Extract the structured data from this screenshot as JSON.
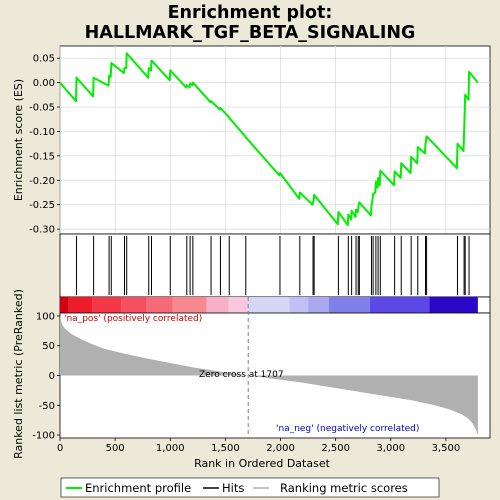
{
  "chart_data": {
    "type": "line",
    "title_lines": [
      "Enrichment plot:",
      "HALLMARK_TGF_BETA_SIGNALING"
    ],
    "top_panel": {
      "ylabel": "Enrichment score (ES)",
      "ylim": [
        -0.31,
        0.075
      ],
      "yticks": [
        0.05,
        0.0,
        -0.05,
        -0.1,
        -0.15,
        -0.2,
        -0.25,
        -0.3
      ],
      "ytick_labels": [
        "0.05",
        "0.00",
        "-0.05",
        "-0.10",
        "-0.15",
        "-0.20",
        "-0.25",
        "-0.30"
      ],
      "grid": true,
      "series": [
        {
          "name": "Enrichment profile",
          "color": "#00ee00",
          "x": [
            0,
            145,
            150,
            300,
            305,
            440,
            445,
            460,
            465,
            580,
            585,
            600,
            605,
            800,
            805,
            825,
            830,
            995,
            1000,
            1145,
            1150,
            1175,
            1180,
            1200,
            1205,
            1365,
            1370,
            1450,
            1455,
            1530,
            1535,
            1680,
            1685,
            1990,
            1995,
            2170,
            2175,
            2290,
            2295,
            2300,
            2305,
            2520,
            2525,
            2610,
            2615,
            2640,
            2645,
            2680,
            2685,
            2700,
            2705,
            2710,
            2715,
            2820,
            2825,
            2835,
            2840,
            2860,
            2865,
            2880,
            2885,
            2900,
            2905,
            3030,
            3035,
            3090,
            3095,
            3180,
            3185,
            3240,
            3245,
            3310,
            3315,
            3320,
            3325,
            3600,
            3605,
            3660,
            3665,
            3670,
            3675,
            3705,
            3710,
            3790
          ],
          "y": [
            0.0,
            -0.038,
            0.01,
            -0.028,
            0.01,
            -0.006,
            0.014,
            0.012,
            0.04,
            0.02,
            0.03,
            0.03,
            0.06,
            0.01,
            0.03,
            0.025,
            0.045,
            0.005,
            0.025,
            -0.01,
            -0.005,
            -0.01,
            -0.002,
            -0.005,
            0.0,
            -0.04,
            -0.038,
            -0.055,
            -0.052,
            -0.07,
            -0.072,
            -0.11,
            -0.112,
            -0.19,
            -0.185,
            -0.238,
            -0.225,
            -0.25,
            -0.245,
            -0.242,
            -0.23,
            -0.29,
            -0.265,
            -0.292,
            -0.27,
            -0.28,
            -0.262,
            -0.275,
            -0.26,
            -0.265,
            -0.258,
            -0.248,
            -0.245,
            -0.272,
            -0.252,
            -0.238,
            -0.228,
            -0.225,
            -0.203,
            -0.215,
            -0.195,
            -0.21,
            -0.18,
            -0.21,
            -0.182,
            -0.195,
            -0.165,
            -0.185,
            -0.152,
            -0.165,
            -0.132,
            -0.145,
            -0.125,
            -0.118,
            -0.11,
            -0.175,
            -0.125,
            -0.14,
            -0.1,
            -0.07,
            -0.025,
            -0.035,
            0.022,
            0.0
          ]
        }
      ]
    },
    "hits": [
      150,
      305,
      445,
      465,
      585,
      605,
      805,
      830,
      1000,
      1150,
      1180,
      1205,
      1370,
      1455,
      1535,
      1685,
      1995,
      2175,
      2295,
      2305,
      2525,
      2615,
      2645,
      2685,
      2705,
      2715,
      2825,
      2840,
      2865,
      2885,
      2905,
      3035,
      3095,
      3185,
      3245,
      3315,
      3325,
      3605,
      3665,
      3675,
      3710
    ],
    "bottom_panel": {
      "ylabel": "Ranked list metric (PreRanked)",
      "xlabel": "Rank in Ordered Dataset",
      "ylim": [
        -105,
        105
      ],
      "yticks": [
        100,
        50,
        0,
        -50,
        -100
      ],
      "ytick_labels": [
        "100",
        "50",
        "0",
        "-50",
        "-100"
      ],
      "xlim": [
        0,
        3900
      ],
      "xticks": [
        0,
        500,
        1000,
        1500,
        2000,
        2500,
        3000,
        3500
      ],
      "xtick_labels": [
        "0",
        "500",
        "1,000",
        "1,500",
        "2,000",
        "2,500",
        "3,000",
        "3,500"
      ],
      "metric_x": [
        0,
        20,
        50,
        100,
        200,
        300,
        400,
        600,
        800,
        1000,
        1200,
        1400,
        1600,
        1707,
        1800,
        2000,
        2200,
        2400,
        2600,
        2800,
        3000,
        3200,
        3400,
        3550,
        3650,
        3700,
        3740,
        3770,
        3790
      ],
      "metric_y": [
        100,
        85,
        78,
        70,
        60,
        52,
        45,
        36,
        28,
        21,
        14,
        8,
        3,
        0,
        -2,
        -7,
        -12,
        -18,
        -24,
        -30,
        -36,
        -42,
        -50,
        -58,
        -66,
        -72,
        -80,
        -90,
        -100
      ],
      "zero_cross": 1707,
      "zero_cross_label": "Zero cross at 1707",
      "pos_label": "'na_pos' (positively correlated)",
      "neg_label": "'na_neg' (negatively correlated)",
      "total_rank": 3790
    },
    "colorbar": [
      {
        "x0": 0,
        "x1": 80,
        "color": "#d40010"
      },
      {
        "x0": 80,
        "x1": 290,
        "color": "#ee1b2a"
      },
      {
        "x0": 290,
        "x1": 560,
        "color": "#f43848"
      },
      {
        "x0": 560,
        "x1": 780,
        "color": "#f55060"
      },
      {
        "x0": 780,
        "x1": 1020,
        "color": "#f66a78"
      },
      {
        "x0": 1020,
        "x1": 1330,
        "color": "#f8888f"
      },
      {
        "x0": 1330,
        "x1": 1530,
        "color": "#f8b0c8"
      },
      {
        "x0": 1530,
        "x1": 1710,
        "color": "#f8c8e0"
      },
      {
        "x0": 1710,
        "x1": 2080,
        "color": "#d6d6f6"
      },
      {
        "x0": 2080,
        "x1": 2250,
        "color": "#c0c0f4"
      },
      {
        "x0": 2250,
        "x1": 2440,
        "color": "#a8a8f0"
      },
      {
        "x0": 2440,
        "x1": 2810,
        "color": "#8080ea"
      },
      {
        "x0": 2810,
        "x1": 3350,
        "color": "#5c48e4"
      },
      {
        "x0": 3350,
        "x1": 3790,
        "color": "#2a08c8"
      }
    ],
    "legend": [
      {
        "label": "Enrichment profile",
        "kind": "line",
        "color": "#00ee00"
      },
      {
        "label": "Hits",
        "kind": "line",
        "color": "#000000"
      },
      {
        "label": "Ranking metric scores",
        "kind": "line",
        "color": "#b0b0b0"
      }
    ],
    "colors": {
      "background": "#ece9d8",
      "plot_bg": "#ffffff",
      "grid": "#d8d8d8",
      "metric_fill": "#b0b0b0",
      "pos_label": "#cc0000",
      "neg_label": "#0000cc",
      "zero_line": "#808080"
    }
  }
}
